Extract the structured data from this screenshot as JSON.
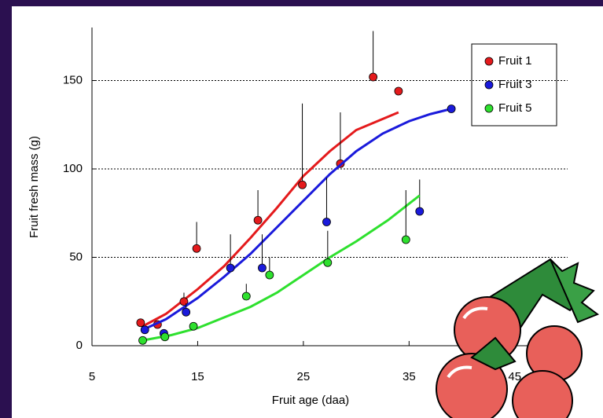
{
  "chart_data": {
    "type": "scatter",
    "xlabel": "Fruit age (daa)",
    "ylabel": "Fruit fresh mass (g)",
    "xlim": [
      5,
      50
    ],
    "xticks": [
      5,
      15,
      25,
      35,
      45
    ],
    "ylim": [
      0,
      180
    ],
    "yticks": [
      0,
      50,
      100,
      150
    ],
    "grid": true,
    "legend": "upper right",
    "series": [
      {
        "name": "Fruit 1",
        "color": "#e41a1c",
        "x": [
          9.6,
          11.2,
          13.7,
          14.9,
          20.7,
          24.9,
          28.5,
          31.6,
          34.0
        ],
        "values": [
          13,
          12,
          25,
          55,
          71,
          91,
          103,
          152,
          144
        ],
        "errors": [
          null,
          null,
          5,
          15,
          17,
          46,
          29,
          26,
          null
        ],
        "fit_x": [
          9.8,
          12,
          15,
          17.5,
          20,
          22.5,
          25,
          27.5,
          30,
          32,
          34
        ],
        "fit_values": [
          11,
          18,
          32,
          45,
          61,
          78,
          96,
          110,
          122,
          127,
          132
        ]
      },
      {
        "name": "Fruit 3",
        "color": "#1a1adb",
        "x": [
          10.0,
          11.8,
          13.9,
          18.1,
          21.1,
          27.2,
          36.0,
          39.0
        ],
        "values": [
          9,
          7,
          19,
          44,
          44,
          70,
          76,
          134
        ],
        "errors": [
          null,
          null,
          5,
          19,
          19,
          25,
          18,
          null
        ],
        "fit_x": [
          9.8,
          12,
          15,
          17.5,
          20,
          22.5,
          25,
          27.5,
          30,
          32.5,
          35,
          37,
          39
        ],
        "fit_values": [
          9,
          15,
          27,
          39,
          52,
          67,
          82,
          97,
          110,
          120,
          127,
          131,
          134
        ]
      },
      {
        "name": "Fruit 5",
        "color": "#2ee02e",
        "x": [
          9.8,
          11.9,
          14.6,
          19.6,
          21.8,
          27.3,
          34.7
        ],
        "values": [
          3,
          5,
          11,
          28,
          40,
          47,
          60
        ],
        "errors": [
          null,
          null,
          null,
          7,
          10,
          18,
          28
        ],
        "fit_x": [
          9.8,
          12.5,
          15,
          17.5,
          20,
          22.5,
          25,
          27.5,
          30,
          33,
          36
        ],
        "fit_values": [
          3,
          6,
          10,
          16,
          22,
          30,
          40,
          50,
          59,
          71,
          85
        ]
      }
    ]
  }
}
